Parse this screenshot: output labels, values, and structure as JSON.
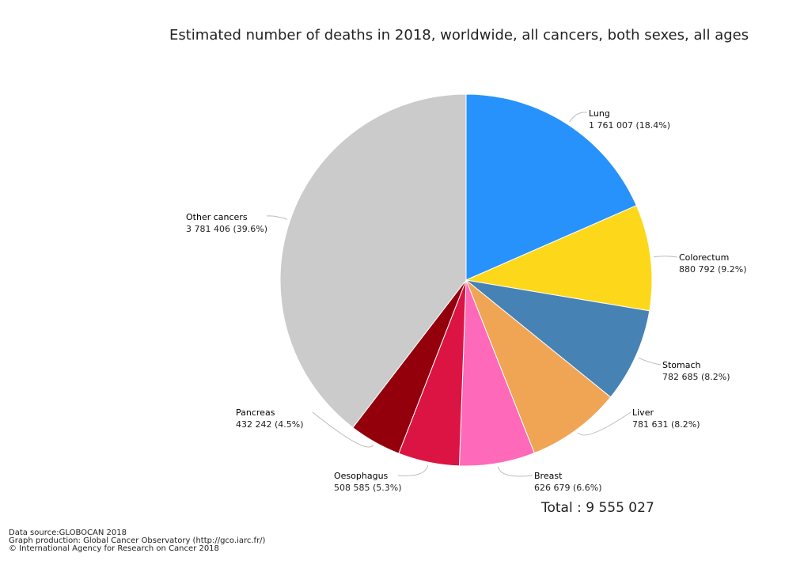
{
  "chart_data": {
    "type": "pie",
    "title": "Estimated number of deaths in 2018, worldwide, all cancers, both sexes, all ages",
    "slices": [
      {
        "label": "Lung",
        "value": 1761007,
        "value_text": "1 761 007 (18.4%)",
        "percent": 18.4,
        "color": "#2892FC"
      },
      {
        "label": "Colorectum",
        "value": 880792,
        "value_text": "880 792 (9.2%)",
        "percent": 9.2,
        "color": "#FDD71A"
      },
      {
        "label": "Stomach",
        "value": 782685,
        "value_text": "782 685 (8.2%)",
        "percent": 8.2,
        "color": "#4682B4"
      },
      {
        "label": "Liver",
        "value": 781631,
        "value_text": "781 631 (8.2%)",
        "percent": 8.2,
        "color": "#F0A555"
      },
      {
        "label": "Breast",
        "value": 626679,
        "value_text": "626 679 (6.6%)",
        "percent": 6.6,
        "color": "#FF69B9"
      },
      {
        "label": "Oesophagus",
        "value": 508585,
        "value_text": "508 585 (5.3%)",
        "percent": 5.3,
        "color": "#DC1443"
      },
      {
        "label": "Pancreas",
        "value": 432242,
        "value_text": "432 242 (4.5%)",
        "percent": 4.5,
        "color": "#93000C"
      },
      {
        "label": "Other cancers",
        "value": 3781406,
        "value_text": "3 781 406 (39.6%)",
        "percent": 39.6,
        "color": "#CBCBCB"
      }
    ],
    "total_text": "Total : 9 555 027"
  },
  "footer": {
    "line1": "Data source:GLOBOCAN 2018",
    "line2": "Graph production: Global Cancer Observatory (http://gco.iarc.fr/)",
    "line3": "© International Agency for Research on Cancer 2018"
  }
}
